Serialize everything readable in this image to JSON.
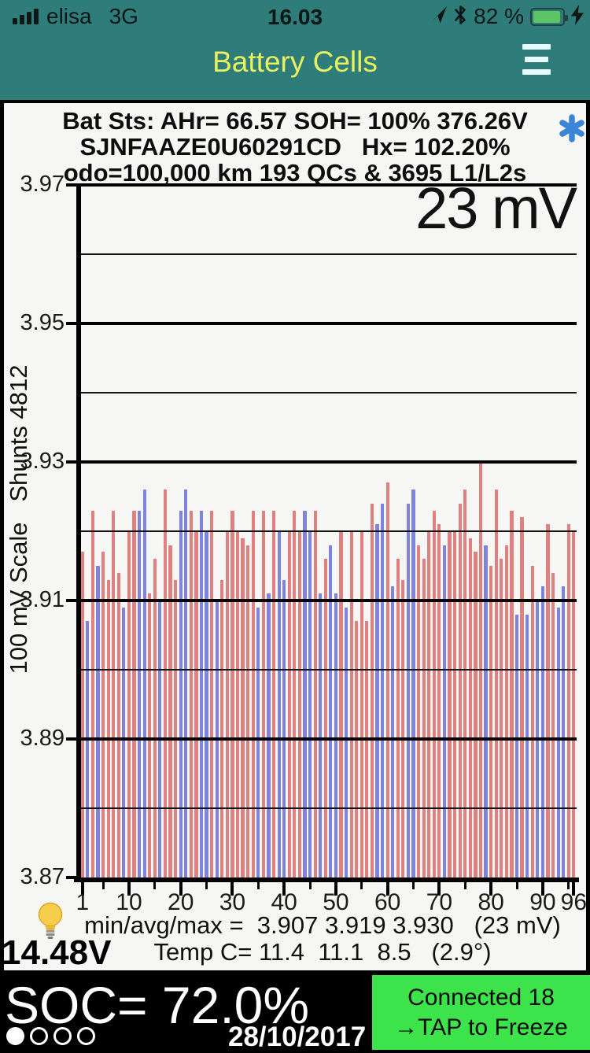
{
  "status_bar": {
    "carrier": "elisa",
    "network": "3G",
    "time": "16.03",
    "battery_percent": "82 %"
  },
  "header": {
    "title": "Battery Cells"
  },
  "battery_status": {
    "line1": "Bat Sts: AHr= 66.57 SOH= 100% 376.26V",
    "line2": "SJNFAAZE0U60291CD   Hx= 102.20%",
    "line3": "odo=100,000 km 193 QCs & 3695 L1/L2s"
  },
  "chart_data": {
    "type": "bar",
    "title_annotation": "23 mV",
    "y_axis_label": "100 mV Scale   Shunts 4812",
    "cells": 96,
    "ylim": [
      3.87,
      3.97
    ],
    "y_tick_labels": [
      "3.97",
      "3.95",
      "3.93",
      "3.91",
      "3.89",
      "3.87"
    ],
    "y_major_gridlines": [
      3.97,
      3.95,
      3.93,
      3.91,
      3.89
    ],
    "y_minor_gridlines": [
      3.96,
      3.94,
      3.92,
      3.9,
      3.88
    ],
    "x_major_ticks": [
      1,
      10,
      20,
      30,
      40,
      50,
      60,
      70,
      80,
      90,
      96
    ],
    "x_minor_ticks": [
      5,
      15,
      25,
      35,
      45,
      55,
      65,
      75,
      85,
      95
    ],
    "stats": {
      "min": 3.907,
      "avg": 3.919,
      "max": 3.93,
      "spread_mV": 23
    },
    "values": [
      3.917,
      3.907,
      3.923,
      3.915,
      3.917,
      3.913,
      3.923,
      3.914,
      3.909,
      3.92,
      3.923,
      3.923,
      3.926,
      3.911,
      3.916,
      3.91,
      3.926,
      3.918,
      3.913,
      3.923,
      3.926,
      3.923,
      3.92,
      3.923,
      3.92,
      3.923,
      3.91,
      3.913,
      3.92,
      3.923,
      3.92,
      3.919,
      3.918,
      3.923,
      3.909,
      3.923,
      3.911,
      3.923,
      3.92,
      3.913,
      3.92,
      3.923,
      3.92,
      3.923,
      3.92,
      3.923,
      3.911,
      3.916,
      3.918,
      3.911,
      3.92,
      3.909,
      3.92,
      3.907,
      3.92,
      3.907,
      3.924,
      3.921,
      3.924,
      3.927,
      3.912,
      3.916,
      3.913,
      3.924,
      3.926,
      3.918,
      3.916,
      3.92,
      3.923,
      3.921,
      3.918,
      3.92,
      3.92,
      3.924,
      3.926,
      3.919,
      3.917,
      3.93,
      3.918,
      3.915,
      3.926,
      3.916,
      3.918,
      3.923,
      3.908,
      3.922,
      3.908,
      3.915,
      3.91,
      3.912,
      3.921,
      3.914,
      3.909,
      3.912,
      3.921,
      3.92
    ],
    "shunt_on": [
      0,
      1,
      0,
      1,
      0,
      0,
      0,
      0,
      1,
      0,
      0,
      1,
      1,
      0,
      0,
      1,
      0,
      0,
      0,
      1,
      1,
      0,
      0,
      1,
      1,
      0,
      1,
      0,
      0,
      0,
      0,
      0,
      0,
      0,
      1,
      0,
      1,
      0,
      1,
      1,
      0,
      0,
      0,
      1,
      1,
      0,
      1,
      0,
      1,
      1,
      0,
      1,
      0,
      0,
      0,
      0,
      0,
      1,
      1,
      0,
      1,
      0,
      0,
      1,
      1,
      0,
      0,
      0,
      0,
      0,
      1,
      0,
      0,
      0,
      0,
      0,
      0,
      0,
      1,
      0,
      0,
      0,
      0,
      0,
      1,
      0,
      1,
      0,
      1,
      1,
      0,
      0,
      1,
      1,
      0,
      0
    ]
  },
  "readouts": {
    "min_avg_max": "min/avg/max =  3.907 3.919 3.930   (23 mV)",
    "temp": "Temp C= 11.4  11.1  8.5   (2.9°)",
    "aux_battery_voltage": "14.48V"
  },
  "bottom_bar": {
    "soc": "SOC= 72.0%",
    "date": "28/10/2017",
    "page_dots": {
      "count": 4,
      "active_index": 0
    },
    "connect_button": {
      "line1": "Connected 18",
      "line2": "→TAP to Freeze"
    }
  },
  "colors": {
    "teal": "#2e7d7b",
    "title-yellow": "#e9f25e",
    "bar-red": "#df8181",
    "bar-blue": "#7e84dc",
    "button-green": "#3de34b",
    "battery-green": "#5dc464",
    "asterisk-blue": "#3a85d8",
    "panel-bg": "#f6f6f4"
  }
}
